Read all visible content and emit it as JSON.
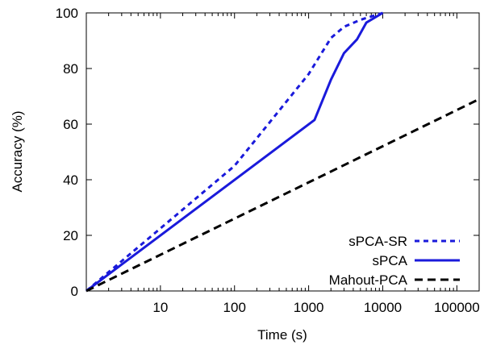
{
  "chart_data": {
    "type": "line",
    "xlabel": "Time (s)",
    "ylabel": "Accuracy (%)",
    "xscale": "log",
    "xlim": [
      1,
      200000
    ],
    "ylim": [
      0,
      100
    ],
    "xticks": [
      {
        "value": 10,
        "label": "10"
      },
      {
        "value": 100,
        "label": "100"
      },
      {
        "value": 1000,
        "label": "1000"
      },
      {
        "value": 10000,
        "label": "10000"
      },
      {
        "value": 100000,
        "label": "100000"
      }
    ],
    "yticks": [
      {
        "value": 0,
        "label": "0"
      },
      {
        "value": 20,
        "label": "20"
      },
      {
        "value": 40,
        "label": "40"
      },
      {
        "value": 60,
        "label": "60"
      },
      {
        "value": 80,
        "label": "80"
      },
      {
        "value": 100,
        "label": "100"
      }
    ],
    "legend_position": "bottom-right",
    "grid": false,
    "series": [
      {
        "name": "sPCA-SR",
        "color": "#1a1adb",
        "style": "dotted",
        "points": [
          [
            1,
            0
          ],
          [
            100,
            45
          ],
          [
            1000,
            78
          ],
          [
            2000,
            91
          ],
          [
            3000,
            95
          ],
          [
            5000,
            97.5
          ],
          [
            10000,
            100
          ]
        ]
      },
      {
        "name": "sPCA",
        "color": "#1a1adb",
        "style": "solid",
        "points": [
          [
            1,
            0
          ],
          [
            1200,
            61.5
          ],
          [
            2000,
            76
          ],
          [
            3000,
            85.5
          ],
          [
            4500,
            90.5
          ],
          [
            6000,
            96.5
          ],
          [
            10000,
            100
          ]
        ]
      },
      {
        "name": "Mahout-PCA",
        "color": "#000000",
        "style": "dashed",
        "points": [
          [
            1,
            0
          ],
          [
            200000,
            69
          ]
        ]
      }
    ]
  }
}
